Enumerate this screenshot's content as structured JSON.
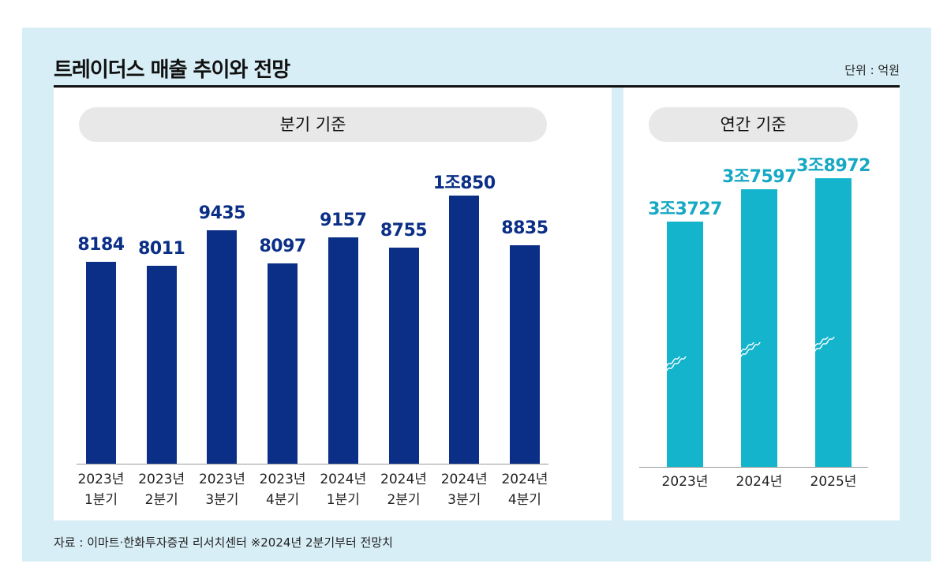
{
  "title": "트레이더스 매출 추이와 전망",
  "unit": "단위 : 억원",
  "source": "자료 : 이마트·한화투자증권 리서치센터 ※2024년 2분기부터 전망치",
  "chart_data": [
    {
      "type": "bar",
      "title": "분기 기준",
      "categories": [
        "2023년\n1분기",
        "2023년\n2분기",
        "2023년\n3분기",
        "2023년\n4분기",
        "2024년\n1분기",
        "2024년\n2분기",
        "2024년\n3분기",
        "2024년\n4분기"
      ],
      "values": [
        8184,
        8011,
        9435,
        8097,
        9157,
        8755,
        10850,
        8835
      ],
      "value_labels": [
        "8184",
        "8011",
        "9435",
        "8097",
        "9157",
        "8755",
        "1조850",
        "8835"
      ],
      "color": "#0b2f86",
      "label_color": "#0b2f86"
    },
    {
      "type": "bar",
      "title": "연간 기준",
      "categories": [
        "2023년",
        "2024년",
        "2025년"
      ],
      "values": [
        33727,
        37597,
        38972
      ],
      "value_labels": [
        "3조3727",
        "3조7597",
        "3조8972"
      ],
      "color": "#14b4cc",
      "label_color": "#17a8c4",
      "broken_axis": true
    }
  ]
}
